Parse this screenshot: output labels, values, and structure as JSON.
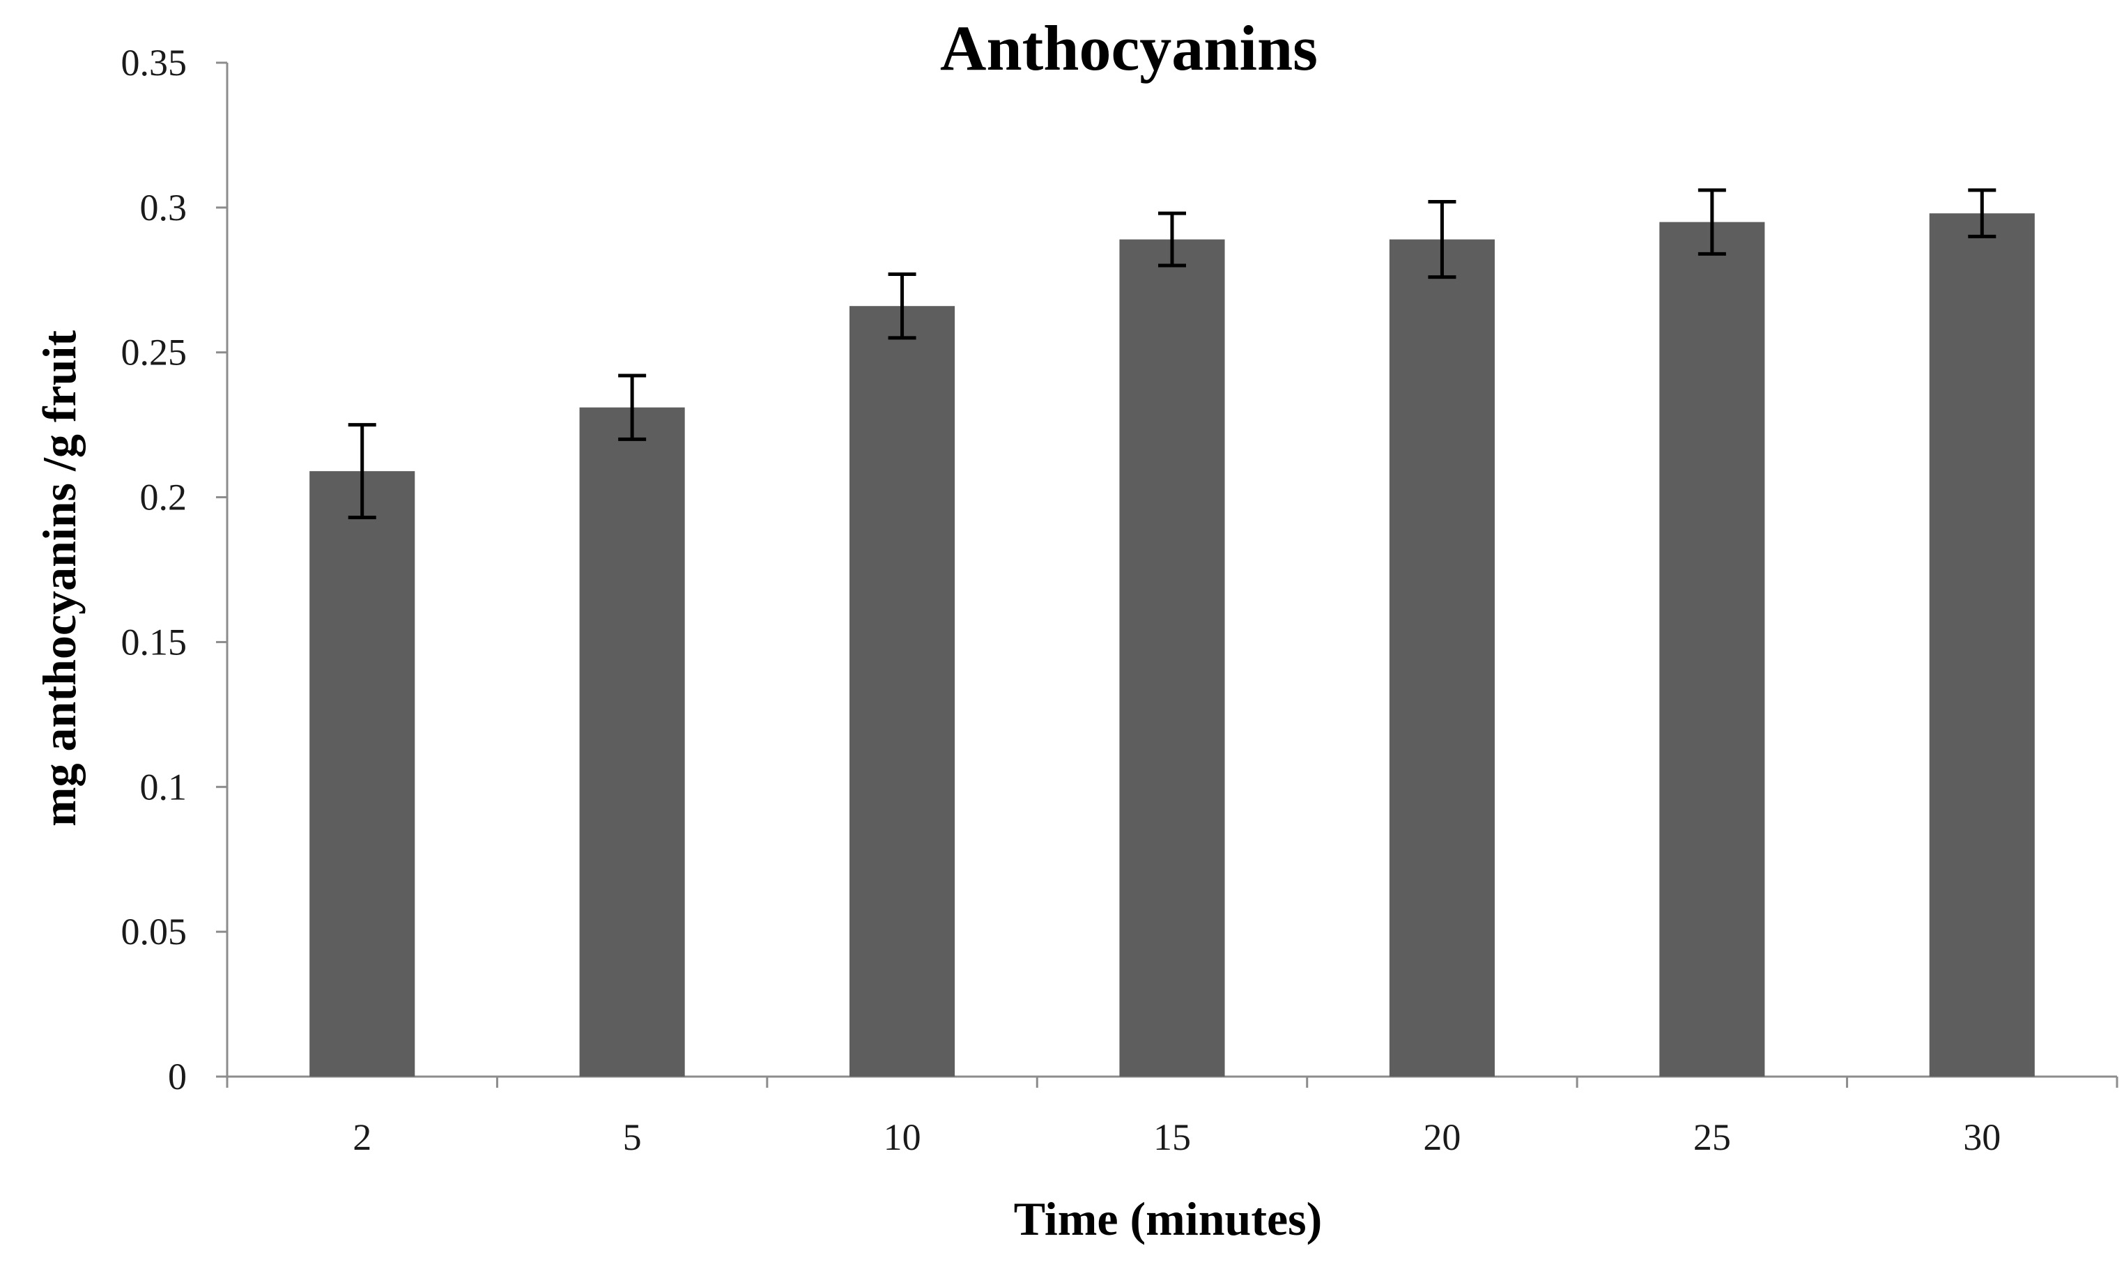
{
  "chart_data": {
    "type": "bar",
    "title": "Anthocyanins",
    "xlabel": "Time (minutes)",
    "ylabel": "mg anthocyanins  /g fruit",
    "categories": [
      "2",
      "5",
      "10",
      "15",
      "20",
      "25",
      "30"
    ],
    "values": [
      0.209,
      0.231,
      0.266,
      0.289,
      0.289,
      0.295,
      0.298
    ],
    "error": [
      0.016,
      0.011,
      0.011,
      0.009,
      0.013,
      0.011,
      0.008
    ],
    "ylim": [
      0,
      0.35
    ],
    "yticks": [
      0,
      0.05,
      0.1,
      0.15,
      0.2,
      0.25,
      0.3,
      0.35
    ],
    "ytick_labels": [
      "0",
      "0.05",
      "0.1",
      "0.15",
      "0.2",
      "0.25",
      "0.3",
      "0.35"
    ],
    "bar_color": "#5e5e5e",
    "grid": false,
    "legend": "none"
  }
}
